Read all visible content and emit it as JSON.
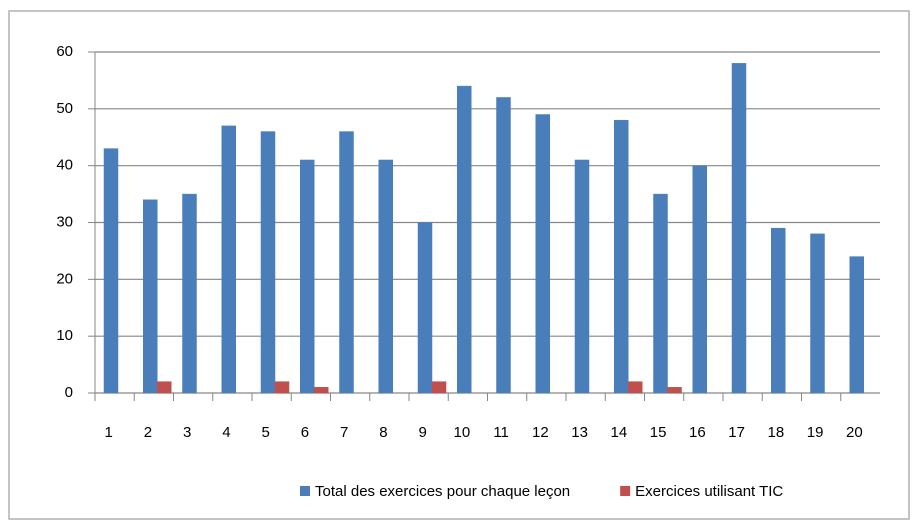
{
  "chart_data": {
    "type": "bar",
    "categories": [
      "1",
      "2",
      "3",
      "4",
      "5",
      "6",
      "7",
      "8",
      "9",
      "10",
      "11",
      "12",
      "13",
      "14",
      "15",
      "16",
      "17",
      "18",
      "19",
      "20"
    ],
    "series": [
      {
        "name": "Total des exercices pour chaque leçon",
        "color": "#4a7ebb",
        "values": [
          43,
          34,
          35,
          47,
          46,
          41,
          46,
          41,
          30,
          54,
          52,
          49,
          41,
          48,
          35,
          40,
          58,
          29,
          28,
          24
        ]
      },
      {
        "name": "Exercices utilisant TIC",
        "color": "#c0504d",
        "values": [
          0,
          2,
          0,
          0,
          2,
          1,
          0,
          0,
          2,
          0,
          0,
          0,
          0,
          2,
          1,
          0,
          0,
          0,
          0,
          0
        ]
      }
    ],
    "ylim": [
      0,
      60
    ],
    "yticks": [
      0,
      10,
      20,
      30,
      40,
      50,
      60
    ],
    "grid": true,
    "legend": "bottom"
  }
}
